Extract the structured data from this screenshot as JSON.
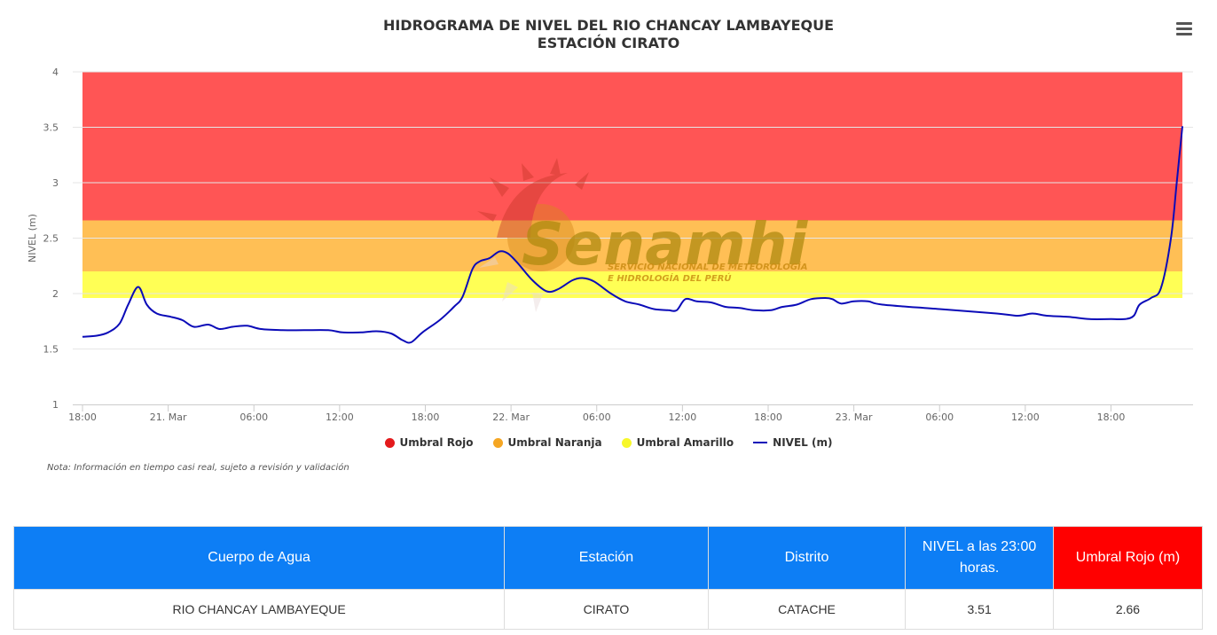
{
  "chart_title_line1": "HIDROGRAMA DE NIVEL DEL RIO CHANCAY LAMBAYEQUE",
  "chart_title_line2": "ESTACIÓN CIRATO",
  "note": "Nota: Información en tiempo casi real, sujeto a revisión y validación",
  "watermark": {
    "brand": "Senamhi",
    "line1": "SERVICIO NACIONAL DE METEOROLOGÍA",
    "line2": "E HIDROLOGÍA DEL PERÚ"
  },
  "legend": [
    {
      "label": "Umbral Rojo",
      "color": "#e41a1c",
      "kind": "dot"
    },
    {
      "label": "Umbral Naranja",
      "color": "#f5a623",
      "kind": "dot"
    },
    {
      "label": "Umbral Amarillo",
      "color": "#f7f72a",
      "kind": "dot"
    },
    {
      "label": "NIVEL (m)",
      "color": "#0b0bb8",
      "kind": "line"
    }
  ],
  "chart_data": {
    "type": "line",
    "ylabel": "NIVEL (m)",
    "ylim": [
      1,
      4
    ],
    "y_ticks": [
      1,
      1.5,
      2,
      2.5,
      3,
      3.5,
      4
    ],
    "x_unit": "hours since 20 Mar 18:00",
    "xlim": [
      0,
      77
    ],
    "x_ticks": [
      {
        "x": 0,
        "label": "18:00"
      },
      {
        "x": 6,
        "label": "21. Mar"
      },
      {
        "x": 12,
        "label": "06:00"
      },
      {
        "x": 18,
        "label": "12:00"
      },
      {
        "x": 24,
        "label": "18:00"
      },
      {
        "x": 30,
        "label": "22. Mar"
      },
      {
        "x": 36,
        "label": "06:00"
      },
      {
        "x": 42,
        "label": "12:00"
      },
      {
        "x": 48,
        "label": "18:00"
      },
      {
        "x": 54,
        "label": "23. Mar"
      },
      {
        "x": 60,
        "label": "06:00"
      },
      {
        "x": 66,
        "label": "12:00"
      },
      {
        "x": 72,
        "label": "18:00"
      }
    ],
    "bands": [
      {
        "name": "Umbral Rojo",
        "from": 2.66,
        "to": 4.0,
        "color": "#ff5555"
      },
      {
        "name": "Umbral Naranja",
        "from": 2.2,
        "to": 2.66,
        "color": "#ffbf55"
      },
      {
        "name": "Umbral Amarillo",
        "from": 1.96,
        "to": 2.2,
        "color": "#ffff55"
      }
    ],
    "series": [
      {
        "name": "NIVEL (m)",
        "color": "#0b0bb8",
        "points": [
          [
            0,
            1.61
          ],
          [
            1,
            1.62
          ],
          [
            1.8,
            1.65
          ],
          [
            2.6,
            1.73
          ],
          [
            3.2,
            1.9
          ],
          [
            3.9,
            2.06
          ],
          [
            4.5,
            1.9
          ],
          [
            5.2,
            1.82
          ],
          [
            6.2,
            1.79
          ],
          [
            7,
            1.76
          ],
          [
            7.8,
            1.7
          ],
          [
            8.8,
            1.72
          ],
          [
            9.6,
            1.68
          ],
          [
            10.5,
            1.7
          ],
          [
            11.5,
            1.71
          ],
          [
            12.5,
            1.68
          ],
          [
            14,
            1.67
          ],
          [
            15.5,
            1.67
          ],
          [
            17.2,
            1.67
          ],
          [
            18.2,
            1.65
          ],
          [
            19.5,
            1.65
          ],
          [
            20.6,
            1.66
          ],
          [
            21.6,
            1.64
          ],
          [
            22.4,
            1.58
          ],
          [
            23,
            1.56
          ],
          [
            23.8,
            1.65
          ],
          [
            25,
            1.76
          ],
          [
            26,
            1.88
          ],
          [
            26.6,
            1.97
          ],
          [
            27.3,
            2.22
          ],
          [
            27.8,
            2.29
          ],
          [
            28.5,
            2.32
          ],
          [
            29.2,
            2.38
          ],
          [
            29.8,
            2.36
          ],
          [
            30.5,
            2.27
          ],
          [
            31.5,
            2.12
          ],
          [
            32.5,
            2.02
          ],
          [
            33.3,
            2.04
          ],
          [
            34.3,
            2.12
          ],
          [
            35,
            2.14
          ],
          [
            35.8,
            2.11
          ],
          [
            37,
            2.0
          ],
          [
            38,
            1.93
          ],
          [
            39,
            1.9
          ],
          [
            40,
            1.86
          ],
          [
            41,
            1.85
          ],
          [
            41.6,
            1.85
          ],
          [
            42.2,
            1.95
          ],
          [
            43,
            1.93
          ],
          [
            44,
            1.92
          ],
          [
            45,
            1.88
          ],
          [
            46,
            1.87
          ],
          [
            47,
            1.85
          ],
          [
            48.2,
            1.85
          ],
          [
            49,
            1.88
          ],
          [
            50,
            1.9
          ],
          [
            51,
            1.95
          ],
          [
            52,
            1.96
          ],
          [
            52.5,
            1.95
          ],
          [
            53.1,
            1.91
          ],
          [
            54,
            1.93
          ],
          [
            55,
            1.93
          ],
          [
            56,
            1.9
          ],
          [
            60,
            1.86
          ],
          [
            64,
            1.82
          ],
          [
            65.5,
            1.8
          ],
          [
            66.5,
            1.82
          ],
          [
            67.5,
            1.8
          ],
          [
            69,
            1.79
          ],
          [
            70.5,
            1.77
          ],
          [
            72,
            1.77
          ],
          [
            73,
            1.77
          ],
          [
            73.6,
            1.8
          ],
          [
            74,
            1.9
          ],
          [
            74.8,
            1.96
          ],
          [
            75.5,
            2.05
          ],
          [
            76.2,
            2.5
          ],
          [
            76.6,
            3.0
          ],
          [
            77,
            3.51
          ]
        ]
      }
    ]
  },
  "table": {
    "headers": [
      {
        "text": "Cuerpo de Agua",
        "bg": "#0d7ef5"
      },
      {
        "text": "Estación",
        "bg": "#0d7ef5"
      },
      {
        "text": "Distrito",
        "bg": "#0d7ef5"
      },
      {
        "text": "NIVEL a las 23:00 horas.",
        "bg": "#0d7ef5"
      },
      {
        "text": "Umbral Rojo (m)",
        "bg": "#ff0000"
      }
    ],
    "rows": [
      [
        "RIO CHANCAY LAMBAYEQUE",
        "CIRATO",
        "CATACHE",
        "3.51",
        "2.66"
      ]
    ]
  }
}
